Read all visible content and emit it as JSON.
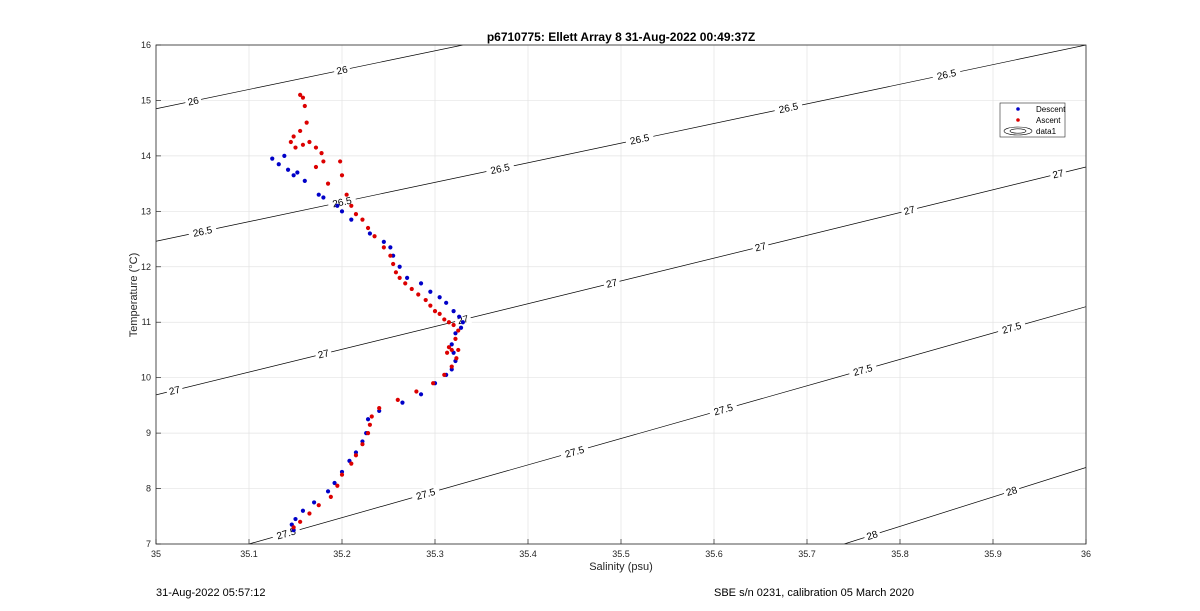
{
  "footer": {
    "left": "31-Aug-2022 05:57:12",
    "right": "SBE s/n 0231, calibration 05 March 2020"
  },
  "chart_data": {
    "type": "scatter",
    "title": "p6710775: Ellett Array 8 31-Aug-2022 00:49:37Z",
    "xlabel": "Salinity (psu)",
    "ylabel": "Temperature (°C)",
    "xlim": [
      35,
      36
    ],
    "ylim": [
      7,
      16
    ],
    "xticks": [
      35,
      35.1,
      35.2,
      35.3,
      35.4,
      35.5,
      35.6,
      35.7,
      35.8,
      35.9,
      36
    ],
    "xtick_labels": [
      "35",
      "35.1",
      "35.2",
      "35.3",
      "35.4",
      "35.5",
      "35.6",
      "35.7",
      "35.8",
      "35.9",
      "36"
    ],
    "yticks": [
      7,
      8,
      9,
      10,
      11,
      12,
      13,
      14,
      15,
      16
    ],
    "ytick_labels": [
      "7",
      "8",
      "9",
      "10",
      "11",
      "12",
      "13",
      "14",
      "15",
      "16"
    ],
    "grid": true,
    "legend": {
      "position": "top-right",
      "entries": [
        "Descent",
        "Ascent",
        "data1"
      ]
    },
    "colors": {
      "descent": "#0000c8",
      "ascent": "#dc0000",
      "contour": "#000000",
      "grid": "#e3e3e3"
    },
    "series": [
      {
        "name": "Descent",
        "x": [
          35.125,
          35.132,
          35.138,
          35.142,
          35.148,
          35.152,
          35.16,
          35.175,
          35.18,
          35.195,
          35.2,
          35.21,
          35.23,
          35.245,
          35.252,
          35.255,
          35.262,
          35.27,
          35.285,
          35.295,
          35.305,
          35.312,
          35.32,
          35.326,
          35.33,
          35.328,
          35.322,
          35.318,
          35.32,
          35.322,
          35.318,
          35.312,
          35.3,
          35.285,
          35.265,
          35.24,
          35.228,
          35.226,
          35.222,
          35.215,
          35.208,
          35.2,
          35.192,
          35.185,
          35.17,
          35.158,
          35.15,
          35.146,
          35.148
        ],
        "y": [
          13.95,
          13.85,
          14.0,
          13.75,
          13.65,
          13.7,
          13.55,
          13.3,
          13.25,
          13.1,
          13.0,
          12.85,
          12.6,
          12.45,
          12.35,
          12.2,
          12.0,
          11.8,
          11.7,
          11.55,
          11.45,
          11.35,
          11.2,
          11.1,
          11.0,
          10.9,
          10.8,
          10.6,
          10.45,
          10.3,
          10.15,
          10.05,
          9.9,
          9.7,
          9.55,
          9.4,
          9.25,
          9.0,
          8.85,
          8.65,
          8.5,
          8.3,
          8.1,
          7.95,
          7.75,
          7.6,
          7.45,
          7.35,
          7.25
        ]
      },
      {
        "name": "Ascent",
        "x": [
          35.155,
          35.158,
          35.16,
          35.162,
          35.155,
          35.148,
          35.145,
          35.15,
          35.158,
          35.165,
          35.172,
          35.178,
          35.18,
          35.172,
          35.185,
          35.198,
          35.2,
          35.205,
          35.21,
          35.215,
          35.222,
          35.228,
          35.235,
          35.245,
          35.252,
          35.255,
          35.258,
          35.262,
          35.268,
          35.275,
          35.282,
          35.29,
          35.295,
          35.3,
          35.305,
          35.31,
          35.315,
          35.32,
          35.325,
          35.322,
          35.315,
          35.313,
          35.318,
          35.325,
          35.323,
          35.318,
          35.31,
          35.298,
          35.28,
          35.26,
          35.24,
          35.232,
          35.23,
          35.228,
          35.222,
          35.215,
          35.21,
          35.2,
          35.195,
          35.188,
          35.175,
          35.165,
          35.155,
          35.148
        ],
        "y": [
          15.1,
          15.05,
          14.9,
          14.6,
          14.45,
          14.35,
          14.25,
          14.15,
          14.2,
          14.25,
          14.15,
          14.05,
          13.9,
          13.8,
          13.5,
          13.9,
          13.65,
          13.3,
          13.1,
          12.95,
          12.85,
          12.7,
          12.55,
          12.35,
          12.2,
          12.05,
          11.9,
          11.8,
          11.7,
          11.6,
          11.5,
          11.4,
          11.3,
          11.2,
          11.15,
          11.05,
          11.0,
          10.95,
          10.85,
          10.7,
          10.55,
          10.45,
          10.5,
          10.5,
          10.35,
          10.2,
          10.05,
          9.9,
          9.75,
          9.6,
          9.45,
          9.3,
          9.15,
          9.0,
          8.8,
          8.6,
          8.45,
          8.25,
          8.05,
          7.85,
          7.7,
          7.55,
          7.4,
          7.3
        ]
      }
    ],
    "contours": [
      {
        "level": 26,
        "label": "26",
        "x": [
          35.0,
          35.33
        ],
        "y": [
          14.85,
          16.0
        ],
        "label_x": [
          35.04,
          35.2
        ]
      },
      {
        "level": 26.5,
        "label": "26.5",
        "x": [
          35.0,
          36.0
        ],
        "y": [
          12.46,
          16.0
        ],
        "label_x": [
          35.05,
          35.2,
          35.37,
          35.52,
          35.68,
          35.85
        ]
      },
      {
        "level": 27,
        "label": "27",
        "x": [
          35.0,
          36.0
        ],
        "y": [
          9.69,
          13.8
        ],
        "label_x": [
          35.02,
          35.18,
          35.33,
          35.49,
          35.65,
          35.81,
          35.97
        ]
      },
      {
        "level": 27.5,
        "label": "27.5",
        "x": [
          35.1,
          36.0
        ],
        "y": [
          7.0,
          11.28
        ],
        "label_x": [
          35.14,
          35.29,
          35.45,
          35.61,
          35.76,
          35.92
        ]
      },
      {
        "level": 28,
        "label": "28",
        "x": [
          35.74,
          36.0
        ],
        "y": [
          7.0,
          8.38
        ],
        "label_x": [
          35.77,
          35.92
        ]
      }
    ]
  }
}
